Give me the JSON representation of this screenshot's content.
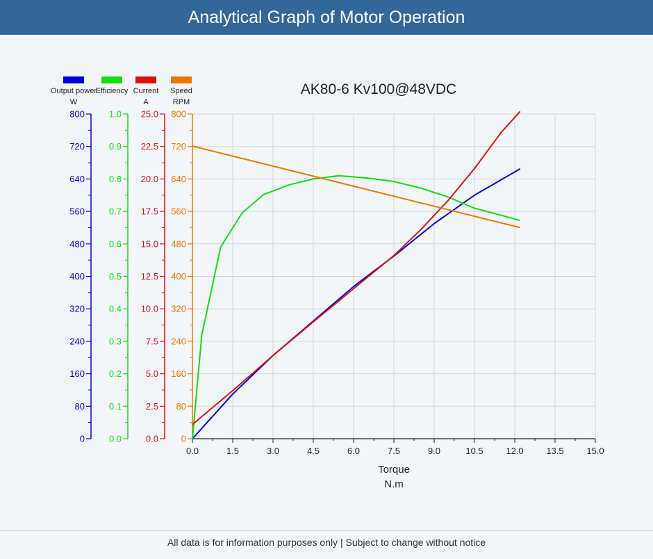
{
  "header": {
    "title": "Analytical Graph of Motor Operation"
  },
  "footer": {
    "text": "All data is for information purposes only | Subject to change without notice"
  },
  "chart_data": {
    "type": "line",
    "title": "AK80-6 Kv100@48VDC",
    "xlabel": "Torque",
    "xunit": "N.m",
    "xlim": [
      0,
      15
    ],
    "xticks": [
      "0.0",
      "1.5",
      "3.0",
      "4.5",
      "6.0",
      "7.5",
      "9.0",
      "10.5",
      "12.0",
      "13.5",
      "15.0"
    ],
    "grid": true,
    "legend_position": "top-left",
    "axes": [
      {
        "id": "power",
        "label": "Output power",
        "unit": "W",
        "color": "#0000dd",
        "ticks": [
          "0",
          "80",
          "160",
          "240",
          "320",
          "400",
          "480",
          "560",
          "640",
          "720",
          "800"
        ],
        "ylim": [
          0,
          800
        ]
      },
      {
        "id": "efficiency",
        "label": "Efficiency",
        "unit": "",
        "color": "#11dd11",
        "ticks": [
          "0.0",
          "0.1",
          "0.2",
          "0.3",
          "0.4",
          "0.5",
          "0.6",
          "0.7",
          "0.8",
          "0.9",
          "1.0"
        ],
        "ylim": [
          0,
          1.0
        ]
      },
      {
        "id": "current",
        "label": "Current",
        "unit": "A",
        "color": "#dd1111",
        "ticks": [
          "0.0",
          "2.5",
          "5.0",
          "7.5",
          "10.0",
          "12.5",
          "15.0",
          "17.5",
          "20.0",
          "22.5",
          "25.0"
        ],
        "ylim": [
          0,
          25
        ]
      },
      {
        "id": "speed",
        "label": "Speed",
        "unit": "RPM",
        "color": "#ee7700",
        "ticks": [
          "0",
          "80",
          "160",
          "240",
          "320",
          "400",
          "480",
          "560",
          "640",
          "720",
          "800"
        ],
        "ylim": [
          0,
          800
        ]
      }
    ],
    "series": [
      {
        "name": "Output power",
        "axis": "power",
        "color": "#0000dd",
        "x": [
          0,
          1.5,
          3.0,
          4.5,
          6.0,
          7.5,
          9.0,
          10.5,
          12.2
        ],
        "y": [
          0,
          110,
          205,
          290,
          375,
          450,
          530,
          600,
          665
        ]
      },
      {
        "name": "Efficiency",
        "axis": "efficiency",
        "color": "#11dd11",
        "x": [
          0,
          0.35,
          1.05,
          1.85,
          2.65,
          3.6,
          4.5,
          5.45,
          6.5,
          7.5,
          8.5,
          9.5,
          10.5,
          11.5,
          12.2
        ],
        "y": [
          0,
          0.32,
          0.59,
          0.695,
          0.752,
          0.782,
          0.8,
          0.81,
          0.803,
          0.792,
          0.772,
          0.745,
          0.71,
          0.688,
          0.672
        ]
      },
      {
        "name": "Current",
        "axis": "current",
        "color": "#dd1111",
        "x": [
          0,
          1.5,
          3.0,
          4.5,
          5.5,
          6.5,
          7.5,
          8.5,
          9.5,
          10.5,
          11.5,
          12.2
        ],
        "y": [
          1.1,
          3.7,
          6.4,
          9.0,
          10.7,
          12.4,
          14.1,
          16.1,
          18.3,
          20.8,
          23.6,
          25.2
        ]
      },
      {
        "name": "Speed",
        "axis": "speed",
        "color": "#ee7700",
        "x": [
          0,
          12.2
        ],
        "y": [
          721,
          520
        ]
      }
    ]
  }
}
